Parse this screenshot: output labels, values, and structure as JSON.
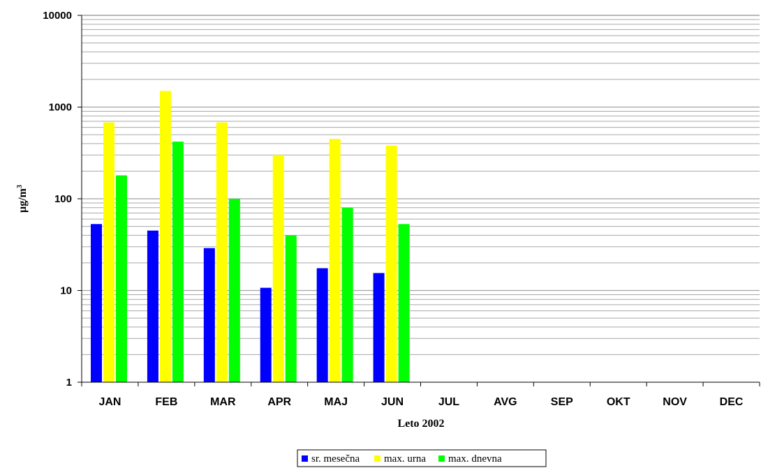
{
  "chart_data": {
    "type": "bar",
    "title": "",
    "xlabel": "Leto 2002",
    "ylabel": "µg/m",
    "ylabel_superscript": "3",
    "yscale": "log",
    "ylim": [
      1,
      10000
    ],
    "yticks": [
      "1",
      "10",
      "100",
      "1000",
      "10000"
    ],
    "grid": true,
    "legend_position": "bottom",
    "categories": [
      "JAN",
      "FEB",
      "MAR",
      "APR",
      "MAJ",
      "JUN",
      "JUL",
      "AVG",
      "SEP",
      "OKT",
      "NOV",
      "DEC"
    ],
    "series": [
      {
        "name": "sr. mesečna",
        "color": "#0000ff",
        "values": [
          53,
          45,
          29,
          10.7,
          17.5,
          15.5,
          null,
          null,
          null,
          null,
          null,
          null
        ]
      },
      {
        "name": "max. urna",
        "color": "#ffff00",
        "values": [
          680,
          1500,
          680,
          300,
          450,
          380,
          null,
          null,
          null,
          null,
          null,
          null
        ]
      },
      {
        "name": "max. dnevna",
        "color": "#00ff00",
        "values": [
          180,
          420,
          100,
          40,
          80,
          53,
          null,
          null,
          null,
          null,
          null,
          null
        ]
      }
    ]
  }
}
